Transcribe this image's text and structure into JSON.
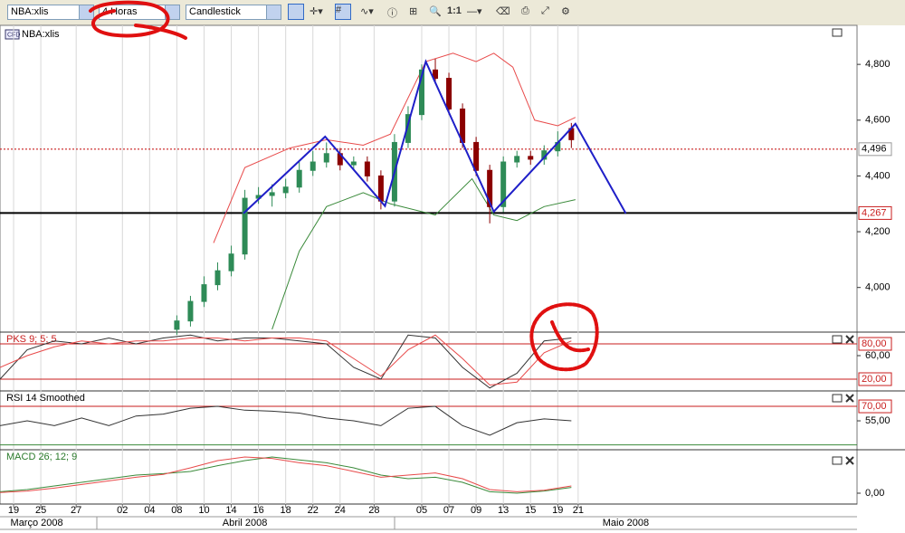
{
  "toolbar": {
    "symbol": "NBA:xlis",
    "timeframe": "4 Horas",
    "chart_style": "Candlestick",
    "zoom": "1:1"
  },
  "chart_data": [
    {
      "type": "candlestick",
      "title": "NBA:xlis",
      "x": [
        12,
        13,
        14,
        15,
        16,
        17,
        18,
        19,
        20,
        21,
        22,
        23,
        24,
        25,
        26,
        27,
        28,
        29,
        30,
        31,
        32,
        33,
        34,
        35,
        36,
        37,
        38,
        39,
        40,
        41
      ],
      "open": [
        3850,
        3880,
        3950,
        4010,
        4060,
        4120,
        4320,
        4330,
        4340,
        4360,
        4420,
        4450,
        4480,
        4440,
        4450,
        4400,
        4310,
        4520,
        4620,
        4780,
        4750,
        4640,
        4520,
        4420,
        4290,
        4450,
        4470,
        4460,
        4490,
        4570
      ],
      "high": [
        3900,
        3970,
        4040,
        4090,
        4150,
        4350,
        4360,
        4370,
        4390,
        4450,
        4490,
        4520,
        4500,
        4470,
        4470,
        4420,
        4550,
        4650,
        4800,
        4820,
        4770,
        4660,
        4540,
        4440,
        4470,
        4490,
        4490,
        4510,
        4560,
        4590
      ],
      "low": [
        3830,
        3860,
        3930,
        3990,
        4040,
        4100,
        4300,
        4290,
        4320,
        4340,
        4400,
        4430,
        4420,
        4420,
        4380,
        4280,
        4290,
        4500,
        4600,
        4730,
        4620,
        4500,
        4400,
        4230,
        4270,
        4430,
        4440,
        4440,
        4470,
        4500
      ],
      "close": [
        3880,
        3950,
        4010,
        4060,
        4120,
        4320,
        4330,
        4340,
        4360,
        4420,
        4450,
        4480,
        4440,
        4450,
        4400,
        4310,
        4520,
        4620,
        4780,
        4750,
        4640,
        4520,
        4420,
        4290,
        4450,
        4470,
        4460,
        4490,
        4520,
        4530
      ],
      "up_color": "#2e8b57",
      "down_color": "#8b0000",
      "series": [
        {
          "color": "#e84a4a",
          "x": [
            14.7,
            17,
            20.3,
            23,
            25.7,
            27.7,
            30.3,
            32.3,
            34,
            35.3,
            36.7,
            38.3,
            40,
            41.3
          ],
          "values": [
            4160,
            4430,
            4500,
            4530,
            4510,
            4550,
            4810,
            4840,
            4810,
            4840,
            4790,
            4600,
            4580,
            4610
          ]
        },
        {
          "color": "#3a8a3a",
          "x": [
            19,
            21,
            23,
            25.7,
            27.7,
            31,
            33.7,
            35.3,
            37,
            39,
            41.3
          ],
          "values": [
            3850,
            4130,
            4290,
            4340,
            4300,
            4260,
            4390,
            4260,
            4240,
            4290,
            4315
          ]
        }
      ],
      "annotation_lines": [
        {
          "color": "#1f1fc8",
          "x": [
            16.9,
            22.9,
            27.3,
            30.3,
            35.3,
            41.3,
            45
          ],
          "y": [
            4266,
            4541,
            4292,
            4810,
            4272,
            4587,
            4266
          ]
        }
      ],
      "hlines": [
        {
          "value": 4496,
          "label": "4,496",
          "color": "#c81e1e",
          "style": "dotted"
        },
        {
          "value": 4267,
          "label": "4,267",
          "color": "#000000",
          "style": "solid"
        }
      ],
      "xlim": [
        -1,
        62
      ],
      "ylim": [
        3840,
        4940
      ],
      "yticks": [
        {
          "value": 4000,
          "label": "4,000"
        },
        {
          "value": 4200,
          "label": "4,200"
        },
        {
          "value": 4400,
          "label": "4,400"
        },
        {
          "value": 4600,
          "label": "4,600"
        },
        {
          "value": 4800,
          "label": "4,800"
        }
      ]
    },
    {
      "type": "line",
      "title": "PKS 9; 5; 5",
      "series": [
        {
          "color": "#333333",
          "x": [
            -1,
            1,
            3,
            5,
            7,
            9,
            11,
            13,
            15,
            17,
            19,
            21,
            23,
            25,
            27,
            29,
            31,
            33,
            35,
            37,
            39,
            41
          ],
          "values": [
            20,
            70,
            85,
            80,
            90,
            80,
            90,
            95,
            85,
            90,
            90,
            85,
            80,
            40,
            20,
            95,
            90,
            40,
            5,
            30,
            85,
            90
          ]
        },
        {
          "color": "#e84a4a",
          "x": [
            -1,
            1,
            3,
            5,
            7,
            9,
            11,
            13,
            15,
            17,
            19,
            21,
            23,
            25,
            27,
            29,
            31,
            33,
            35,
            37,
            39,
            41
          ],
          "values": [
            40,
            60,
            75,
            85,
            80,
            85,
            85,
            90,
            90,
            85,
            90,
            90,
            85,
            55,
            25,
            70,
            95,
            55,
            10,
            15,
            65,
            85
          ]
        }
      ],
      "hlines": [
        {
          "value": 80,
          "label": "80,00",
          "color": "#c81e1e",
          "style": "solid"
        },
        {
          "value": 20,
          "label": "20,00",
          "color": "#c81e1e",
          "style": "solid"
        }
      ],
      "xlim": [
        -1,
        62
      ],
      "ylim": [
        0,
        100
      ],
      "yticks": [
        {
          "value": 60,
          "label": "60,00"
        }
      ]
    },
    {
      "type": "line",
      "title": "RSI 14 Smoothed",
      "series": [
        {
          "color": "#333333",
          "x": [
            -1,
            1,
            3,
            5,
            7,
            9,
            11,
            13,
            15,
            17,
            19,
            21,
            23,
            25,
            27,
            29,
            31,
            33,
            35,
            37,
            39,
            41
          ],
          "values": [
            50,
            55,
            50,
            58,
            50,
            60,
            62,
            68,
            70,
            66,
            65,
            63,
            58,
            55,
            50,
            68,
            70,
            50,
            40,
            53,
            57,
            55
          ]
        }
      ],
      "hlines": [
        {
          "value": 70,
          "label": "70,00",
          "color": "#c81e1e",
          "style": "solid"
        },
        {
          "value": 30,
          "color": "#3a8a3a",
          "style": "solid"
        }
      ],
      "xlim": [
        -1,
        62
      ],
      "ylim": [
        25,
        86
      ],
      "yticks": [
        {
          "value": 55,
          "label": "55,00"
        }
      ]
    },
    {
      "type": "line",
      "title": "MACD 26; 12; 9",
      "series": [
        {
          "color": "#3a8a3a",
          "x": [
            -1,
            1,
            3,
            5,
            7,
            9,
            11,
            13,
            15,
            17,
            19,
            21,
            23,
            25,
            27,
            29,
            31,
            33,
            35,
            37,
            39,
            41
          ],
          "values": [
            2,
            5,
            10,
            15,
            20,
            25,
            27,
            30,
            38,
            45,
            50,
            46,
            42,
            35,
            25,
            20,
            22,
            15,
            2,
            0,
            3,
            8
          ]
        },
        {
          "color": "#e84a4a",
          "x": [
            -1,
            1,
            3,
            5,
            7,
            9,
            11,
            13,
            15,
            17,
            19,
            21,
            23,
            25,
            27,
            29,
            31,
            33,
            35,
            37,
            39,
            41
          ],
          "values": [
            1,
            3,
            7,
            12,
            17,
            22,
            26,
            35,
            45,
            50,
            48,
            42,
            38,
            30,
            22,
            25,
            28,
            20,
            5,
            2,
            4,
            10
          ]
        }
      ],
      "xlim": [
        -1,
        62
      ],
      "ylim": [
        -15,
        60
      ],
      "yticks": [
        {
          "value": 0,
          "label": "0,00"
        }
      ],
      "grid": true,
      "xticks": [
        {
          "value": 0,
          "label": "19"
        },
        {
          "value": 2,
          "label": "25"
        },
        {
          "value": 4.6,
          "label": "27"
        },
        {
          "value": 8,
          "label": "02"
        },
        {
          "value": 10,
          "label": "04"
        },
        {
          "value": 12,
          "label": "08"
        },
        {
          "value": 14,
          "label": "10"
        },
        {
          "value": 16,
          "label": "14"
        },
        {
          "value": 18,
          "label": "16"
        },
        {
          "value": 20,
          "label": "18"
        },
        {
          "value": 22,
          "label": "22"
        },
        {
          "value": 24,
          "label": "24"
        },
        {
          "value": 26.5,
          "label": "28"
        },
        {
          "value": 30,
          "label": "05"
        },
        {
          "value": 32,
          "label": "07"
        },
        {
          "value": 34,
          "label": "09"
        },
        {
          "value": 36,
          "label": "13"
        },
        {
          "value": 38,
          "label": "15"
        },
        {
          "value": 40,
          "label": "19"
        },
        {
          "value": 41.5,
          "label": "21"
        }
      ],
      "month_labels": [
        {
          "value": 1.7,
          "label": "Março 2008"
        },
        {
          "value": 17,
          "label": "Abril 2008"
        },
        {
          "value": 45,
          "label": "Maio 2008"
        }
      ]
    }
  ]
}
